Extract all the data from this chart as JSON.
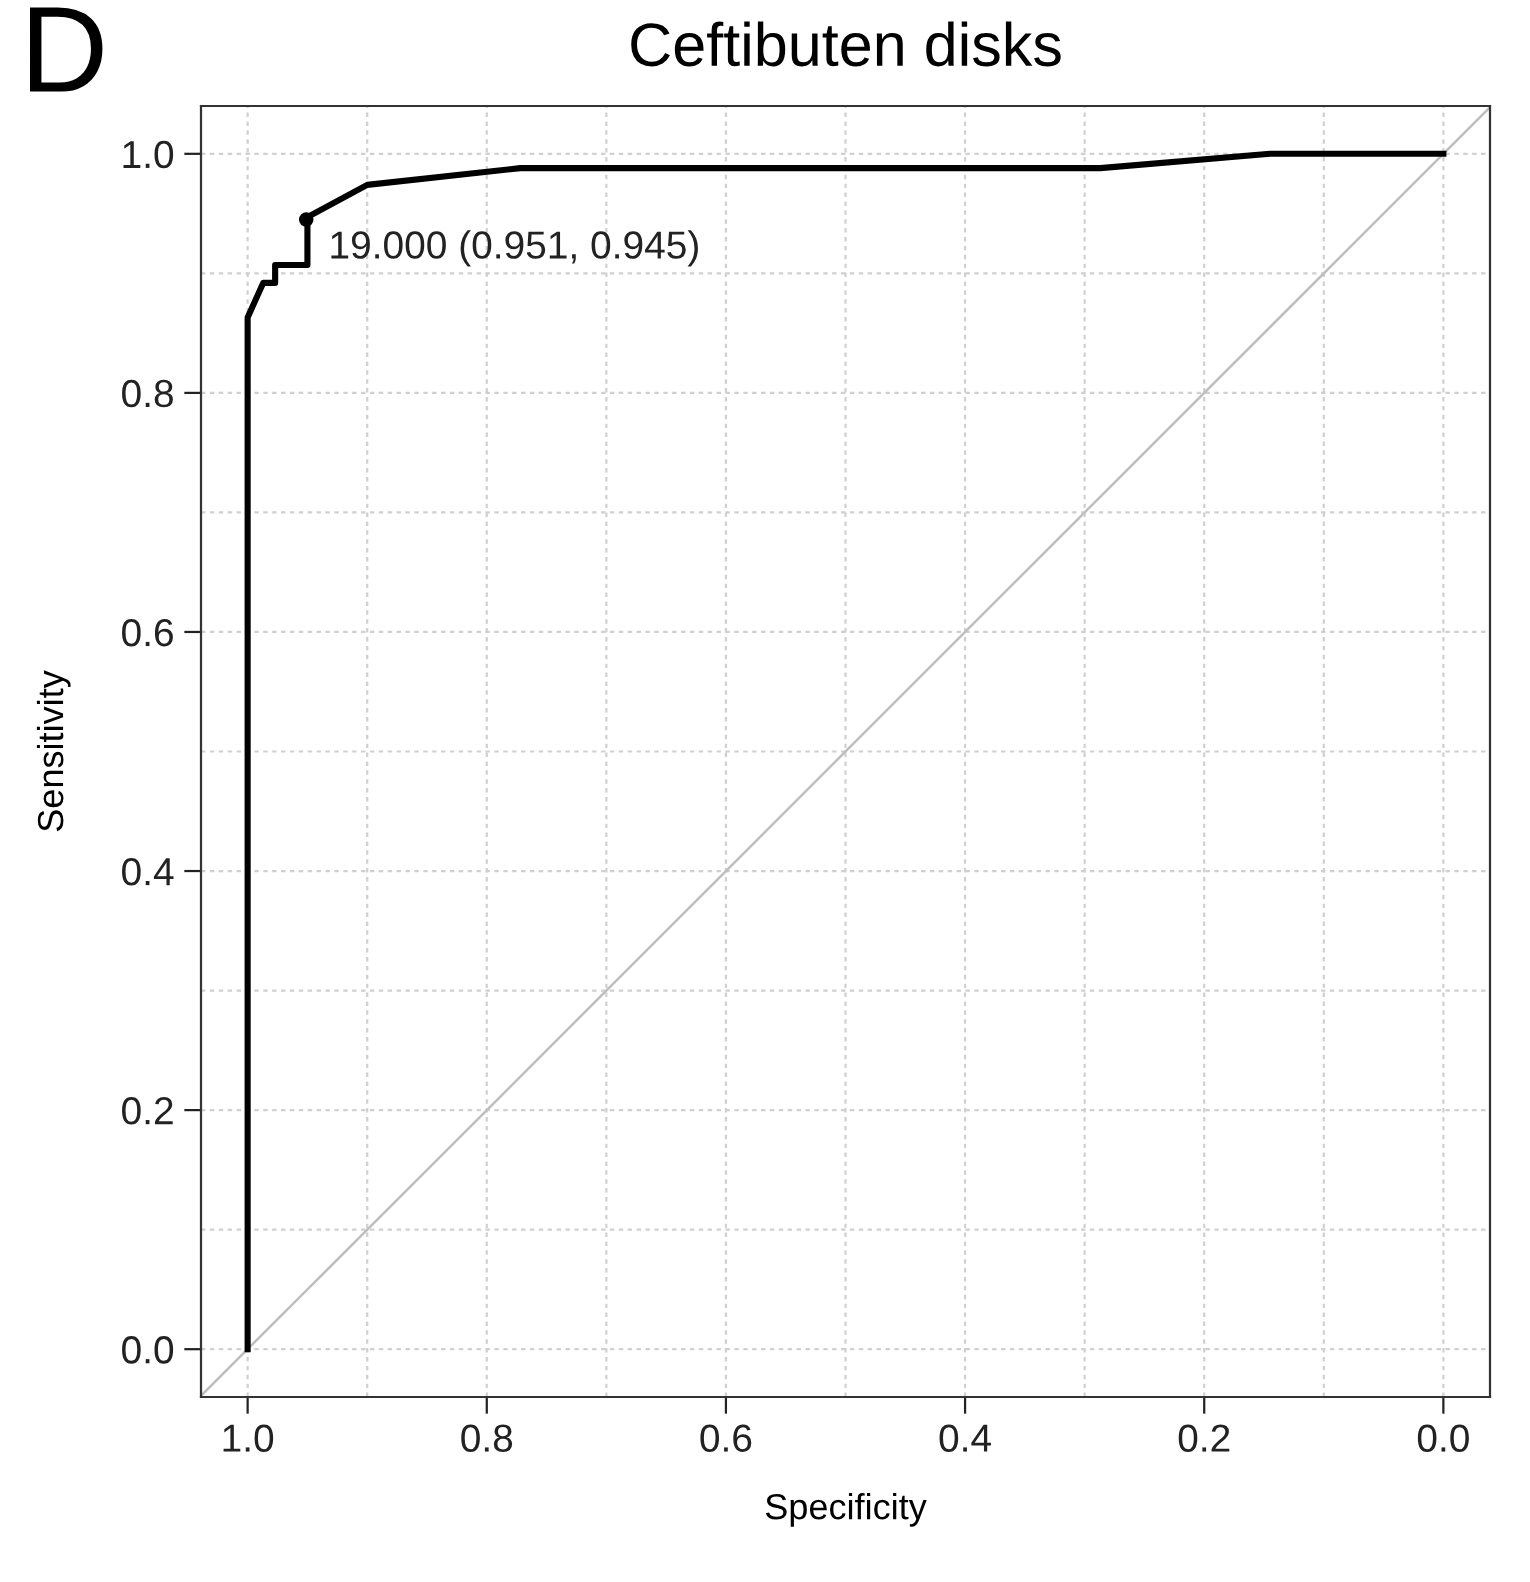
{
  "chart_data": {
    "type": "line",
    "title": "Ceftibuten disks",
    "xlabel": "Specificity",
    "ylabel": "Sensitivity",
    "annotations": [
      "D",
      {
        "text": "19.000 (0.951, 0.945)",
        "x": 0.951,
        "y": 0.945
      }
    ],
    "series": [
      {
        "type": "line",
        "color": "#000000",
        "x": [
          1.0,
          1.0,
          0.987,
          0.977,
          0.977,
          0.95,
          0.95,
          0.9,
          0.772,
          0.287,
          0.145,
          0.0
        ],
        "values": [
          0.0,
          0.863,
          0.892,
          0.892,
          0.907,
          0.907,
          0.947,
          0.974,
          0.988,
          0.988,
          1.0,
          1.0
        ]
      },
      {
        "type": "scatter",
        "color": "#000000",
        "x": [
          0.951
        ],
        "values": [
          0.945
        ]
      },
      {
        "type": "line",
        "color": "#bebebe",
        "x": [
          1.039,
          -0.039
        ],
        "values": [
          -0.039,
          1.039
        ]
      }
    ],
    "xlim": [
      1.039,
      -0.039
    ],
    "ylim": [
      -0.04,
      1.04
    ],
    "xticks": [
      {
        "value": 1.0,
        "label": "1.0"
      },
      0.8,
      0.6,
      0.4,
      0.2,
      {
        "value": 0.0,
        "label": "0.0"
      }
    ],
    "yticks": [
      {
        "value": 0.0,
        "label": "0.0"
      },
      0.2,
      0.4,
      0.6,
      0.8,
      {
        "value": 1.0,
        "label": "1.0"
      }
    ],
    "grid": true
  }
}
